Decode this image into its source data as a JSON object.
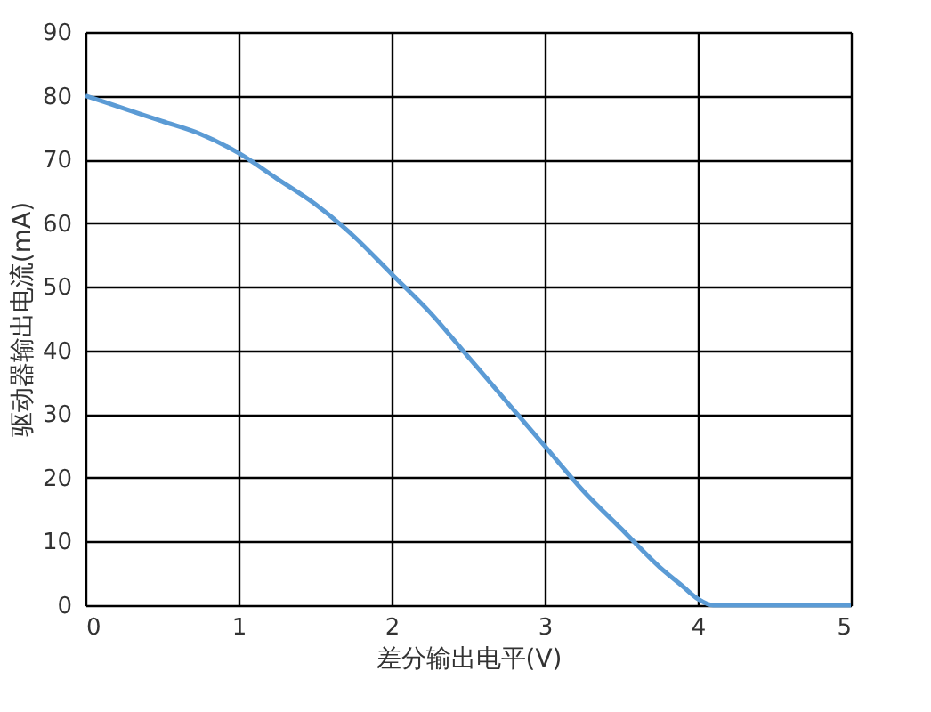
{
  "chart_data": {
    "type": "line",
    "xlabel": "差分输出电平(V)",
    "ylabel": "驱动器输出电流(mA)",
    "x": [
      0,
      0.25,
      0.5,
      0.75,
      1,
      1.25,
      1.5,
      1.75,
      2,
      2.25,
      2.5,
      2.75,
      3,
      3.25,
      3.5,
      3.75,
      3.9,
      4,
      4.1,
      4.2,
      4.5,
      5
    ],
    "series": [
      {
        "color": "#5b9bd5",
        "values": [
          80,
          78,
          76,
          74,
          71,
          67,
          63,
          58,
          52,
          46,
          39,
          32,
          25,
          18,
          12,
          6,
          3,
          1,
          0,
          0,
          0,
          0
        ]
      }
    ],
    "xlim": [
      0,
      5
    ],
    "xticks": [
      0,
      1,
      2,
      3,
      4,
      5
    ],
    "ylim": [
      0,
      90
    ],
    "yticks": [
      0,
      10,
      20,
      30,
      40,
      50,
      60,
      70,
      80,
      90
    ],
    "grid": true,
    "marker": "none",
    "line_style": "solid"
  }
}
